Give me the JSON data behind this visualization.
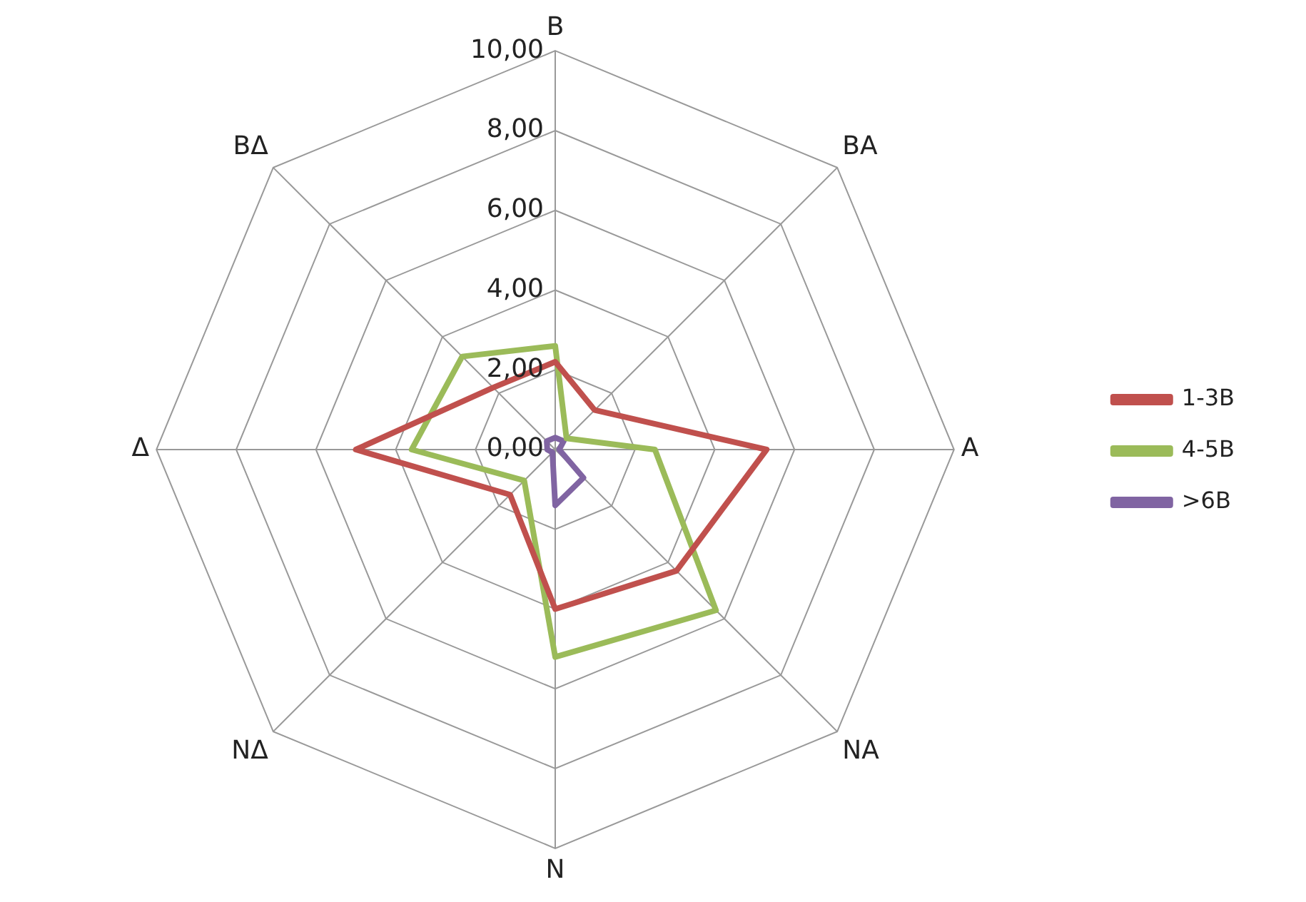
{
  "chart_data": {
    "type": "radar",
    "categories": [
      "B",
      "BA",
      "A",
      "NA",
      "N",
      "NΔ",
      "Δ",
      "BΔ"
    ],
    "series": [
      {
        "name": "1-3B",
        "color": "#c0504d",
        "values": [
          2.2,
          1.4,
          5.3,
          4.3,
          4.0,
          1.6,
          5.0,
          2.2
        ]
      },
      {
        "name": "4-5B",
        "color": "#9bbb59",
        "values": [
          2.6,
          0.4,
          2.5,
          5.7,
          5.2,
          1.1,
          3.6,
          3.3
        ]
      },
      {
        "name": ">6B",
        "color": "#8064a2",
        "values": [
          0.3,
          0.3,
          0.1,
          1.0,
          1.4,
          0.1,
          0.2,
          0.3
        ]
      }
    ],
    "ylim": [
      0,
      10
    ],
    "yticks": [
      {
        "value": 0,
        "label": "0,00"
      },
      {
        "value": 2,
        "label": "2,00"
      },
      {
        "value": 4,
        "label": "4,00"
      },
      {
        "value": 6,
        "label": "6,00"
      },
      {
        "value": 8,
        "label": "8,00"
      },
      {
        "value": 10,
        "label": "10,00"
      }
    ],
    "grid": true,
    "legend": "right",
    "marker": "none",
    "line_style": "solid"
  }
}
